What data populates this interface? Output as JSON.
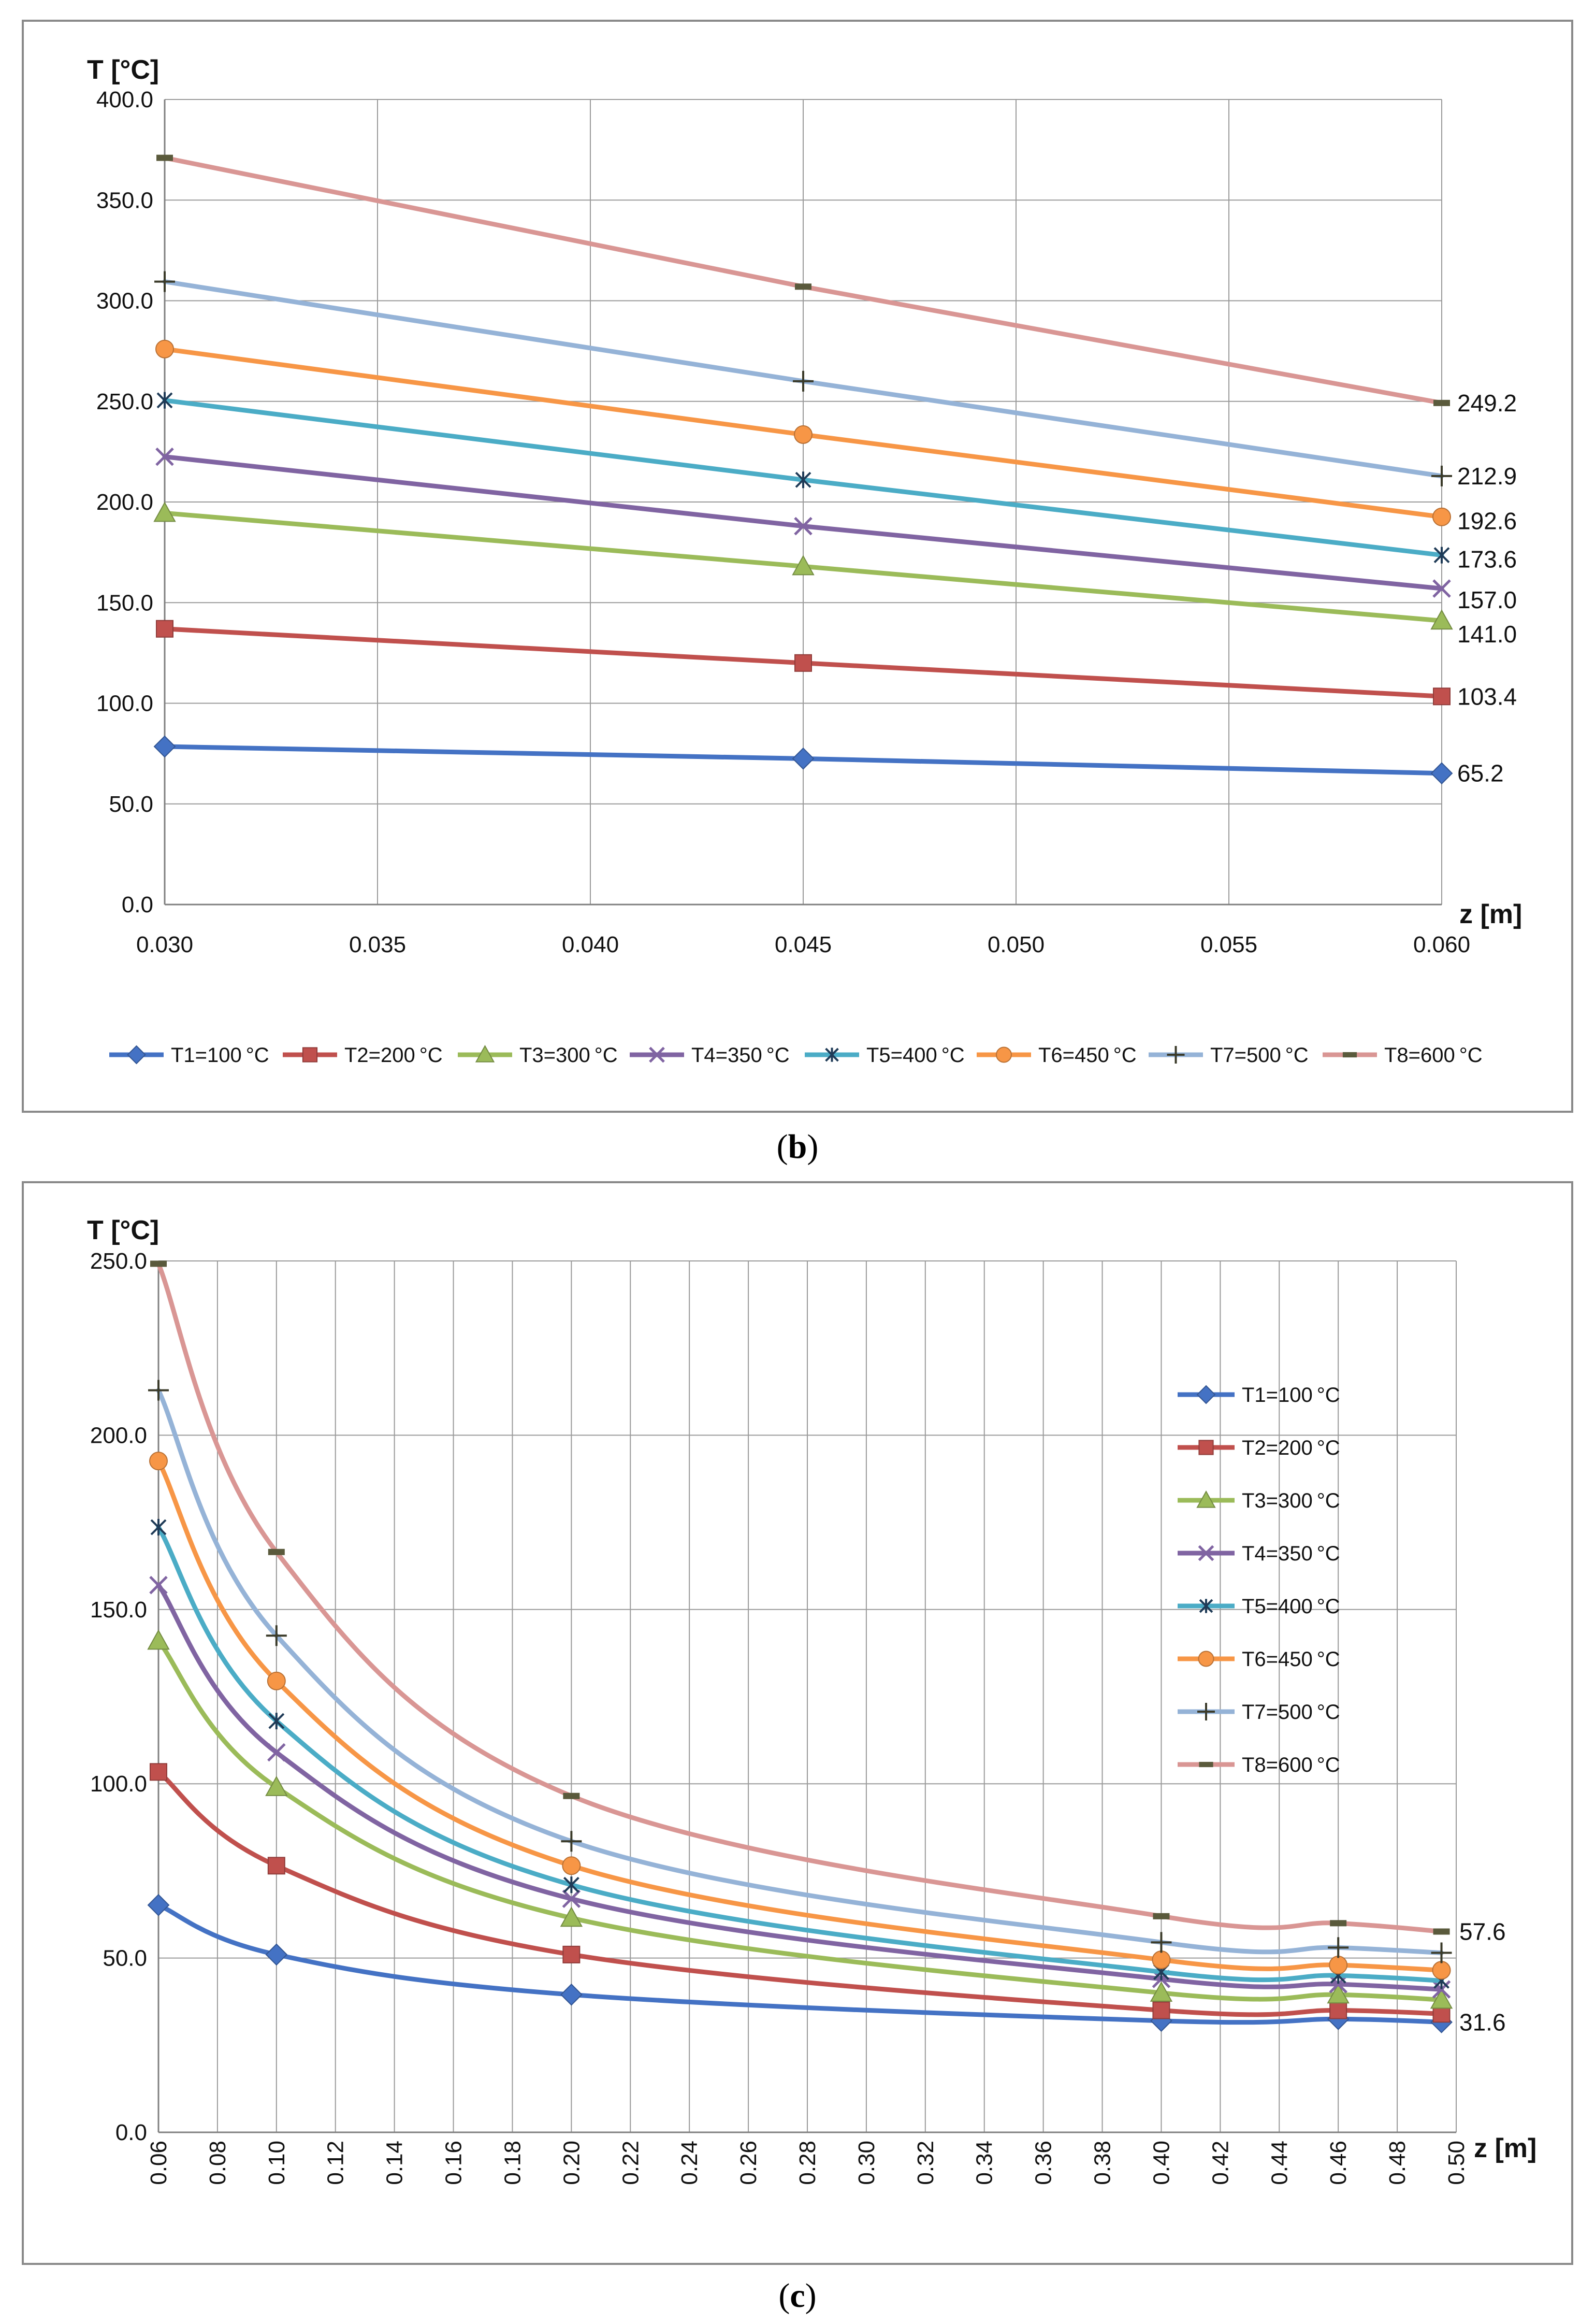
{
  "captions": {
    "b_open": "(",
    "b_letter": "b",
    "b_close": ")",
    "c_open": "(",
    "c_letter": "c",
    "c_close": ")"
  },
  "series_style": [
    {
      "name": "T1=100 °C",
      "color": "#4472C4",
      "marker": "diamond"
    },
    {
      "name": "T2=200 °C",
      "color": "#C0504D",
      "marker": "square"
    },
    {
      "name": "T3=300 °C",
      "color": "#9BBB59",
      "marker": "triangle"
    },
    {
      "name": "T4=350 °C",
      "color": "#8064A2",
      "marker": "x"
    },
    {
      "name": "T5=400 °C",
      "color": "#4BACC6",
      "marker": "star"
    },
    {
      "name": "T6=450 °C",
      "color": "#F79646",
      "marker": "circle"
    },
    {
      "name": "T7=500 °C",
      "color": "#95B3D7",
      "marker": "plus"
    },
    {
      "name": "T8=600 °C",
      "color": "#D99694",
      "marker": "dash"
    }
  ],
  "chart_data": [
    {
      "id": "b",
      "type": "line",
      "ylabel": "T [°C]",
      "xlabel": "z [m]",
      "xlim": [
        0.03,
        0.06
      ],
      "ylim": [
        0,
        400
      ],
      "xticks": [
        "0.030",
        "0.035",
        "0.040",
        "0.045",
        "0.050",
        "0.055",
        "0.060"
      ],
      "yticks": [
        "0.0",
        "50.0",
        "100.0",
        "150.0",
        "200.0",
        "250.0",
        "300.0",
        "350.0",
        "400.0"
      ],
      "grid": true,
      "legend": "bottom",
      "x": [
        0.03,
        0.045,
        0.06
      ],
      "series": [
        {
          "name": "T1=100 °C",
          "values": [
            78.5,
            72.5,
            65.2
          ]
        },
        {
          "name": "T2=200 °C",
          "values": [
            137.0,
            120.0,
            103.4
          ]
        },
        {
          "name": "T3=300 °C",
          "values": [
            194.5,
            168.0,
            141.0
          ]
        },
        {
          "name": "T4=350 °C",
          "values": [
            222.5,
            188.0,
            157.0
          ]
        },
        {
          "name": "T5=400 °C",
          "values": [
            250.5,
            211.0,
            173.6
          ]
        },
        {
          "name": "T6=450 °C",
          "values": [
            276.0,
            233.5,
            192.6
          ]
        },
        {
          "name": "T7=500 °C",
          "values": [
            309.5,
            260.0,
            212.9
          ]
        },
        {
          "name": "T8=600 °C",
          "values": [
            371.0,
            307.0,
            249.2
          ]
        }
      ],
      "end_labels": [
        {
          "series": 7,
          "text": "249.2"
        },
        {
          "series": 6,
          "text": "212.9"
        },
        {
          "series": 5,
          "text": "192.6"
        },
        {
          "series": 4,
          "text": "173.6"
        },
        {
          "series": 3,
          "text": "157.0"
        },
        {
          "series": 2,
          "text": "141.0"
        },
        {
          "series": 1,
          "text": "103.4"
        },
        {
          "series": 0,
          "text": "65.2"
        }
      ]
    },
    {
      "id": "c",
      "type": "line",
      "ylabel": "T [°C]",
      "xlabel": "z [m]",
      "xlim": [
        0.06,
        0.5
      ],
      "ylim": [
        0,
        250
      ],
      "xticks": [
        "0.06",
        "0.08",
        "0.10",
        "0.12",
        "0.14",
        "0.16",
        "0.18",
        "0.20",
        "0.22",
        "0.24",
        "0.26",
        "0.28",
        "0.30",
        "0.32",
        "0.34",
        "0.36",
        "0.38",
        "0.40",
        "0.42",
        "0.44",
        "0.46",
        "0.48",
        "0.50"
      ],
      "yticks": [
        "0.0",
        "50.0",
        "100.0",
        "150.0",
        "200.0",
        "250.0"
      ],
      "grid": true,
      "legend": "top-right",
      "x": [
        0.06,
        0.1,
        0.2,
        0.4,
        0.46,
        0.495
      ],
      "series": [
        {
          "name": "T1=100 °C",
          "values": [
            65.2,
            51.0,
            39.5,
            32.0,
            32.5,
            31.6
          ]
        },
        {
          "name": "T2=200 °C",
          "values": [
            103.4,
            76.5,
            51.0,
            35.0,
            35.0,
            34.0
          ]
        },
        {
          "name": "T3=300 °C",
          "values": [
            141.0,
            99.0,
            61.5,
            40.0,
            39.5,
            38.0
          ]
        },
        {
          "name": "T4=350 °C",
          "values": [
            157.0,
            109.0,
            67.0,
            44.0,
            42.5,
            41.0
          ]
        },
        {
          "name": "T5=400 °C",
          "values": [
            173.6,
            118.0,
            71.0,
            46.0,
            45.0,
            43.5
          ]
        },
        {
          "name": "T6=450 °C",
          "values": [
            192.6,
            129.5,
            76.5,
            49.5,
            48.0,
            46.5
          ]
        },
        {
          "name": "T7=500 °C",
          "values": [
            212.9,
            142.5,
            83.5,
            54.5,
            53.0,
            51.5
          ]
        },
        {
          "name": "T8=600 °C",
          "values": [
            249.2,
            166.5,
            96.5,
            62.0,
            60.0,
            57.6
          ]
        }
      ],
      "end_labels": [
        {
          "series": 7,
          "text": "57.6"
        },
        {
          "series": 0,
          "text": "31.6"
        }
      ]
    }
  ]
}
